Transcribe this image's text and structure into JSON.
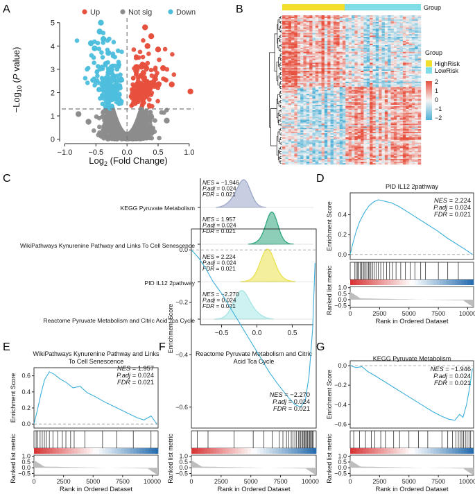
{
  "figure": {
    "panel_letters": [
      "A",
      "B",
      "C",
      "D",
      "E",
      "F",
      "G"
    ],
    "colors": {
      "up": "#E8503E",
      "notsig": "#8C8C8C",
      "down": "#4DBEDC",
      "gsea_line": "#3BAFDA",
      "highrisk": "#F2DE2B",
      "lowrisk": "#7FDDE8",
      "heat_high": "#E8503E",
      "heat_mid": "#F4F4F4",
      "heat_low": "#4DB0D6",
      "metric_fill": "#BDBDBD",
      "ridge": [
        "#9AA6C8",
        "#2FA57F",
        "#EAE24C",
        "#A6E5E5"
      ]
    }
  },
  "chart_data": [
    {
      "panel": "A",
      "type": "scatter",
      "title": "",
      "legend": [
        "Up",
        "Not sig",
        "Down"
      ],
      "xlabel": "Log2 (Fold Change)",
      "ylabel": "-Log10 (P value)",
      "xlim": [
        -1.05,
        1.08
      ],
      "ylim": [
        -0.1,
        5.2
      ],
      "xticks": [
        "-1.0",
        "-0.5",
        "0.0",
        "0.5",
        "1.0"
      ],
      "yticks": [
        "0",
        "1",
        "2",
        "3",
        "4",
        "5"
      ],
      "threshold_y": 1.3,
      "threshold_x": 0,
      "highlight_points": [
        {
          "x": -0.42,
          "y": 5.0,
          "group": "Down"
        },
        {
          "x": -0.44,
          "y": 4.62,
          "group": "Down"
        },
        {
          "x": -0.38,
          "y": 4.3,
          "group": "Down"
        },
        {
          "x": -0.58,
          "y": 4.12,
          "group": "Down"
        },
        {
          "x": -0.52,
          "y": 3.9,
          "group": "Down"
        },
        {
          "x": -0.3,
          "y": 3.7,
          "group": "Down"
        },
        {
          "x": 0.29,
          "y": 4.8,
          "group": "Up"
        },
        {
          "x": 0.39,
          "y": 4.42,
          "group": "Up"
        },
        {
          "x": 0.33,
          "y": 4.0,
          "group": "Up"
        },
        {
          "x": 0.5,
          "y": 3.85,
          "group": "Up"
        },
        {
          "x": 0.58,
          "y": 3.05,
          "group": "Up"
        },
        {
          "x": 0.72,
          "y": 2.35,
          "group": "Up"
        },
        {
          "x": 1.02,
          "y": 2.05,
          "group": "Up"
        },
        {
          "x": -0.78,
          "y": 1.08,
          "group": "Not sig"
        },
        {
          "x": -0.62,
          "y": 0.75,
          "group": "Not sig"
        },
        {
          "x": 0.64,
          "y": 0.8,
          "group": "Not sig"
        }
      ]
    },
    {
      "panel": "B",
      "type": "heatmap",
      "legend_title": "Group",
      "groups": [
        "HighRisk",
        "LowRisk"
      ],
      "group_split": 0.45,
      "scale_title": "",
      "scale_ticks": [
        "2",
        "1",
        "0",
        "-1",
        "-2"
      ]
    },
    {
      "panel": "C",
      "type": "ridge",
      "xticks": [
        "-0.5",
        "0.0",
        "0.5"
      ],
      "xlim": [
        -0.8,
        0.8
      ],
      "pathways": [
        {
          "name": "KEGG Pyruvate Metabolism",
          "nes": "NES = −1.946",
          "padj": "P.adj = 0.024",
          "fdr": "FDR = 0.021",
          "peak": -0.22,
          "spread": 0.11
        },
        {
          "name": "WikiPathways Kynurenine Pathway and Links To Cell Senescence",
          "nes": "NES = 1.957",
          "padj": "P.adj = 0.024",
          "fdr": "FDR = 0.021",
          "peak": 0.2,
          "spread": 0.1
        },
        {
          "name": "PID IL12 2pathway",
          "nes": "NES = 2.224",
          "padj": "P.adj = 0.024",
          "fdr": "FDR = 0.021",
          "peak": 0.16,
          "spread": 0.12
        },
        {
          "name": "Reactome Pyruvate Metabolism and Citric Acid Tca Cycle",
          "nes": "NES = −2.270",
          "padj": "P.adj = 0.024",
          "fdr": "FDR = 0.021",
          "peak": -0.18,
          "spread": 0.13
        }
      ]
    },
    {
      "panel": "D",
      "type": "line",
      "title": "PID IL12 2pathway",
      "nes": "NES = 2.224",
      "padj": "P.adj = 0.024",
      "fdr": "FDR = 0.021",
      "ylabel": "Enrichment Score",
      "xlabel": "Rank in Ordered Dataset",
      "metric_label": "Ranked list metric",
      "ylim": [
        -0.05,
        0.62
      ],
      "yticks": [
        0.0,
        0.2,
        0.4
      ],
      "metric_ticks": [
        "1.0",
        "0.5",
        "0.0",
        "-0.5"
      ],
      "xticks": [
        "0",
        "2500",
        "5000",
        "7500",
        "10000"
      ],
      "x": [
        0,
        200,
        500,
        800,
        1200,
        1600,
        2000,
        2400,
        2800,
        3500,
        4200,
        5000,
        5800,
        6600,
        7400,
        8200,
        9000,
        9800,
        10400
      ],
      "y": [
        0.0,
        0.1,
        0.23,
        0.33,
        0.42,
        0.49,
        0.53,
        0.55,
        0.54,
        0.52,
        0.48,
        0.42,
        0.36,
        0.3,
        0.24,
        0.17,
        0.11,
        0.05,
        0.0
      ],
      "hits": [
        400,
        520,
        640,
        720,
        860,
        980,
        1100,
        1180,
        1300,
        1420,
        1560,
        1650,
        1760,
        1900,
        2050,
        2200,
        2400,
        2600,
        2850,
        3100,
        3350,
        3600,
        3900,
        4300,
        4700,
        5100,
        5500,
        6000,
        6400,
        7500,
        8300,
        9200
      ]
    },
    {
      "panel": "E",
      "type": "line",
      "title": "WikiPathways Kynurenine Pathway and Links To Cell Senescence",
      "nes": "NES = 1.957",
      "padj": "P.adj = 0.024",
      "fdr": "FDR = 0.021",
      "ylabel": "Enrichment Score",
      "xlabel": "Rank in Ordered Dataset",
      "metric_label": "Ranked list metric",
      "ylim": [
        -0.05,
        0.7
      ],
      "yticks": [
        0.0,
        0.2,
        0.4,
        0.6
      ],
      "metric_ticks": [
        "1.0",
        "0.5",
        "0.0",
        "-0.5"
      ],
      "xticks": [
        "0",
        "2500",
        "5000",
        "7500",
        "10000"
      ],
      "x": [
        0,
        300,
        600,
        900,
        1300,
        1700,
        2200,
        2700,
        3300,
        3900,
        4500,
        5200,
        5900,
        6600,
        7300,
        8000,
        8700,
        9300,
        9900,
        10400
      ],
      "y": [
        0.0,
        0.18,
        0.38,
        0.55,
        0.65,
        0.62,
        0.56,
        0.52,
        0.45,
        0.47,
        0.39,
        0.34,
        0.28,
        0.23,
        0.18,
        0.13,
        0.08,
        0.05,
        0.1,
        0.0
      ],
      "hits": [
        180,
        300,
        520,
        700,
        880,
        1050,
        1300,
        1600,
        2000,
        2400,
        2700,
        3100,
        3400,
        4300,
        5800,
        7000,
        8400,
        9900
      ]
    },
    {
      "panel": "F",
      "type": "line",
      "title": "Reactome Pyruvate Metabolism and Citric Acid Tca Cycle",
      "nes": "NES = −2.270",
      "padj": "P.adj = 0.024",
      "fdr": "FDR = 0.021",
      "ylabel": "Enrichment Score",
      "xlabel": "Rank in Ordered Dataset",
      "metric_label": "Ranked list metric",
      "ylim": [
        -0.68,
        0.08
      ],
      "yticks": [
        0.0,
        -0.2,
        -0.4,
        -0.6
      ],
      "metric_ticks": [
        "1.0",
        "0.5",
        "0.0",
        "-0.5"
      ],
      "xticks": [
        "0",
        "2500",
        "5000",
        "7500",
        "10000"
      ],
      "x": [
        0,
        600,
        1200,
        1800,
        2600,
        3400,
        4200,
        5000,
        5800,
        6600,
        7400,
        8100,
        8700,
        9200,
        9600,
        9900,
        10200,
        10400
      ],
      "y": [
        0.0,
        -0.03,
        -0.07,
        -0.12,
        -0.17,
        -0.23,
        -0.29,
        -0.35,
        -0.41,
        -0.47,
        -0.52,
        -0.56,
        -0.59,
        -0.6,
        -0.57,
        -0.48,
        -0.3,
        -0.05
      ],
      "hits": [
        500,
        1400,
        3600,
        5200,
        6100,
        6800,
        7400,
        7700,
        8000,
        8200,
        8400,
        8550,
        8700,
        8850,
        9000,
        9100,
        9200,
        9300,
        9380,
        9460,
        9540,
        9620,
        9700,
        9780,
        9860,
        9940,
        10020,
        10100,
        10180,
        10260
      ]
    },
    {
      "panel": "G",
      "type": "line",
      "title": "KEGG Pyruvate Metabolism",
      "nes": "NES = −1.946",
      "padj": "P.adj = 0.024",
      "fdr": "FDR = 0.021",
      "ylabel": "Enrichment Score",
      "xlabel": "Rank in Ordered Dataset",
      "metric_label": "Ranked list metric",
      "ylim": [
        -0.64,
        0.05
      ],
      "yticks": [
        0.0,
        -0.2,
        -0.4,
        -0.6
      ],
      "metric_ticks": [
        "1.0",
        "0.5",
        "0.0",
        "-0.5"
      ],
      "xticks": [
        "0",
        "2500",
        "5000",
        "7500",
        "10000"
      ],
      "x": [
        0,
        500,
        1000,
        1500,
        2200,
        3000,
        3800,
        4600,
        5400,
        6200,
        7000,
        7800,
        8400,
        8900,
        9300,
        9600,
        9900,
        10200,
        10400
      ],
      "y": [
        0.0,
        -0.02,
        -0.01,
        -0.06,
        -0.11,
        -0.17,
        -0.23,
        -0.29,
        -0.35,
        -0.41,
        -0.47,
        -0.52,
        -0.55,
        -0.56,
        -0.5,
        -0.53,
        -0.4,
        -0.2,
        -0.03
      ],
      "hits": [
        300,
        800,
        1300,
        1800,
        2100,
        2600,
        3000,
        3700,
        4200,
        5000,
        5800,
        6600,
        7800,
        8300,
        8700,
        9000,
        9200,
        9350,
        9500,
        9650,
        9800,
        9950,
        10100,
        10250
      ]
    }
  ]
}
